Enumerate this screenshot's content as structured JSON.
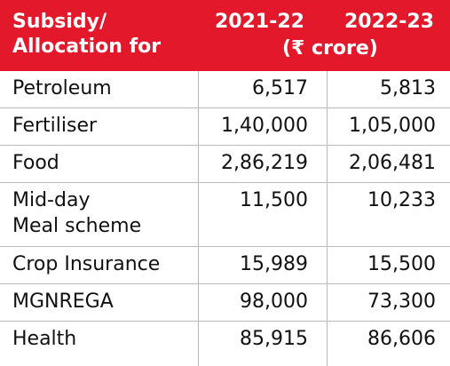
{
  "header": {
    "label_line1": "Subsidy/",
    "label_line2": "Allocation for",
    "year1": "2021-22",
    "year2": "2022-23",
    "unit": "(₹ crore)"
  },
  "rows": [
    {
      "label_line1": "Petroleum",
      "label_line2": "",
      "v2021": "6,517",
      "v2022": "5,813"
    },
    {
      "label_line1": "Fertiliser",
      "label_line2": "",
      "v2021": "1,40,000",
      "v2022": "1,05,000"
    },
    {
      "label_line1": "Food",
      "label_line2": "",
      "v2021": "2,86,219",
      "v2022": "2,06,481"
    },
    {
      "label_line1": "Mid-day",
      "label_line2": "Meal scheme",
      "v2021": "11,500",
      "v2022": "10,233"
    },
    {
      "label_line1": "Crop Insurance",
      "label_line2": "",
      "v2021": "15,989",
      "v2022": "15,500"
    },
    {
      "label_line1": "MGNREGA",
      "label_line2": "",
      "v2021": "98,000",
      "v2022": "73,300"
    },
    {
      "label_line1": "Health",
      "label_line2": "",
      "v2021": "85,915",
      "v2022": "86,606"
    }
  ],
  "colors": {
    "header_bg": "#e3192b",
    "header_text": "#ffffff",
    "rule": "#b9b9b9"
  }
}
